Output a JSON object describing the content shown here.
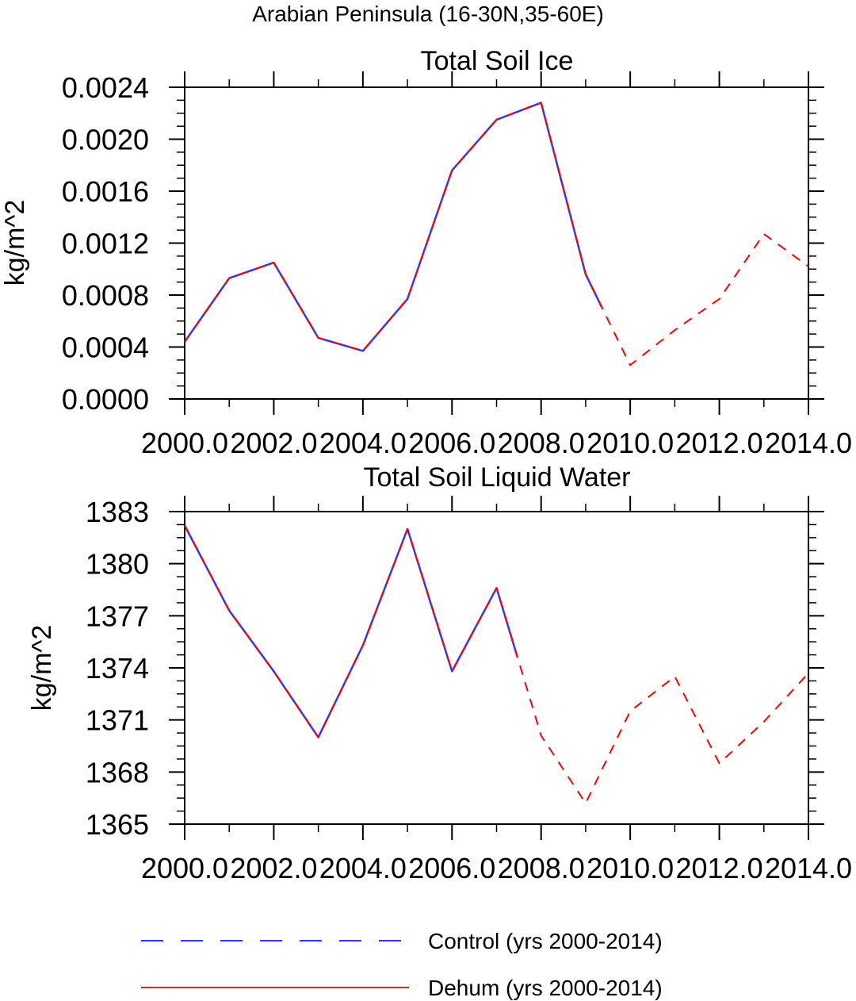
{
  "figure": {
    "suptitle": "Arabian Peninsula (16-30N,35-60E)"
  },
  "legend": {
    "placement": "bottom-center",
    "entries": [
      {
        "label": "Control (yrs 2000-2014)",
        "color": "#3333ff",
        "style": "dashed"
      },
      {
        "label": "Dehum (yrs 2000-2014)",
        "color": "#ff0000",
        "style": "solid"
      }
    ]
  },
  "chart_data": [
    {
      "type": "line",
      "title": "Total Soil Ice",
      "xlabel": "",
      "ylabel": "kg/m^2",
      "xlim": [
        2000,
        2014
      ],
      "ylim": [
        0,
        0.0024
      ],
      "xticks": [
        "2000.0",
        "2002.0",
        "2004.0",
        "2006.0",
        "2008.0",
        "2010.0",
        "2012.0",
        "2014.0"
      ],
      "xtick_values": [
        2000,
        2002,
        2004,
        2006,
        2008,
        2010,
        2012,
        2014
      ],
      "yticks": [
        "0.0000",
        "0.0004",
        "0.0008",
        "0.0012",
        "0.0016",
        "0.0020",
        "0.0024"
      ],
      "ytick_values": [
        0,
        0.0004,
        0.0008,
        0.0012,
        0.0016,
        0.002,
        0.0024
      ],
      "x": [
        2000,
        2001,
        2002,
        2003,
        2004,
        2005,
        2006,
        2007,
        2008,
        2009,
        2010,
        2011,
        2012,
        2013,
        2014
      ],
      "series": [
        {
          "name": "Control (yrs 2000-2014)",
          "color": "#3333ff",
          "values": [
            0.00044,
            0.00093,
            0.00105,
            0.00047,
            0.00037,
            0.00077,
            0.00176,
            0.00215,
            0.00228,
            0.00096,
            0.00026,
            0.00053,
            0.00077,
            0.00127,
            0.00102
          ]
        },
        {
          "name": "Dehum (yrs 2000-2014)",
          "color": "#ff0000",
          "values": [
            0.00044,
            0.00093,
            0.00105,
            0.00047,
            0.00037,
            0.00077,
            0.00176,
            0.00215,
            0.00228,
            0.00096,
            0.00026,
            0.00053,
            0.00077,
            0.00127,
            0.00102
          ]
        }
      ]
    },
    {
      "type": "line",
      "title": "Total Soil Liquid Water",
      "xlabel": "",
      "ylabel": "kg/m^2",
      "xlim": [
        2000,
        2014
      ],
      "ylim": [
        1365,
        1383
      ],
      "xticks": [
        "2000.0",
        "2002.0",
        "2004.0",
        "2006.0",
        "2008.0",
        "2010.0",
        "2012.0",
        "2014.0"
      ],
      "xtick_values": [
        2000,
        2002,
        2004,
        2006,
        2008,
        2010,
        2012,
        2014
      ],
      "yticks": [
        "1365",
        "1368",
        "1371",
        "1374",
        "1377",
        "1380",
        "1383"
      ],
      "ytick_values": [
        1365,
        1368,
        1371,
        1374,
        1377,
        1380,
        1383
      ],
      "x": [
        2000,
        2001,
        2002,
        2003,
        2004,
        2005,
        2006,
        2007,
        2008,
        2009,
        2010,
        2011,
        2012,
        2013,
        2014
      ],
      "series": [
        {
          "name": "Control (yrs 2000-2014)",
          "color": "#3333ff",
          "values": [
            1382.2,
            1377.3,
            1373.8,
            1370.0,
            1375.3,
            1382.0,
            1373.8,
            1378.6,
            1370.1,
            1366.2,
            1371.5,
            1373.5,
            1368.5,
            1370.9,
            1373.7
          ]
        },
        {
          "name": "Dehum (yrs 2000-2014)",
          "color": "#ff0000",
          "values": [
            1382.2,
            1377.3,
            1373.8,
            1370.0,
            1375.3,
            1382.0,
            1373.8,
            1378.6,
            1370.1,
            1366.2,
            1371.5,
            1373.5,
            1368.5,
            1370.9,
            1373.7
          ]
        }
      ]
    }
  ]
}
